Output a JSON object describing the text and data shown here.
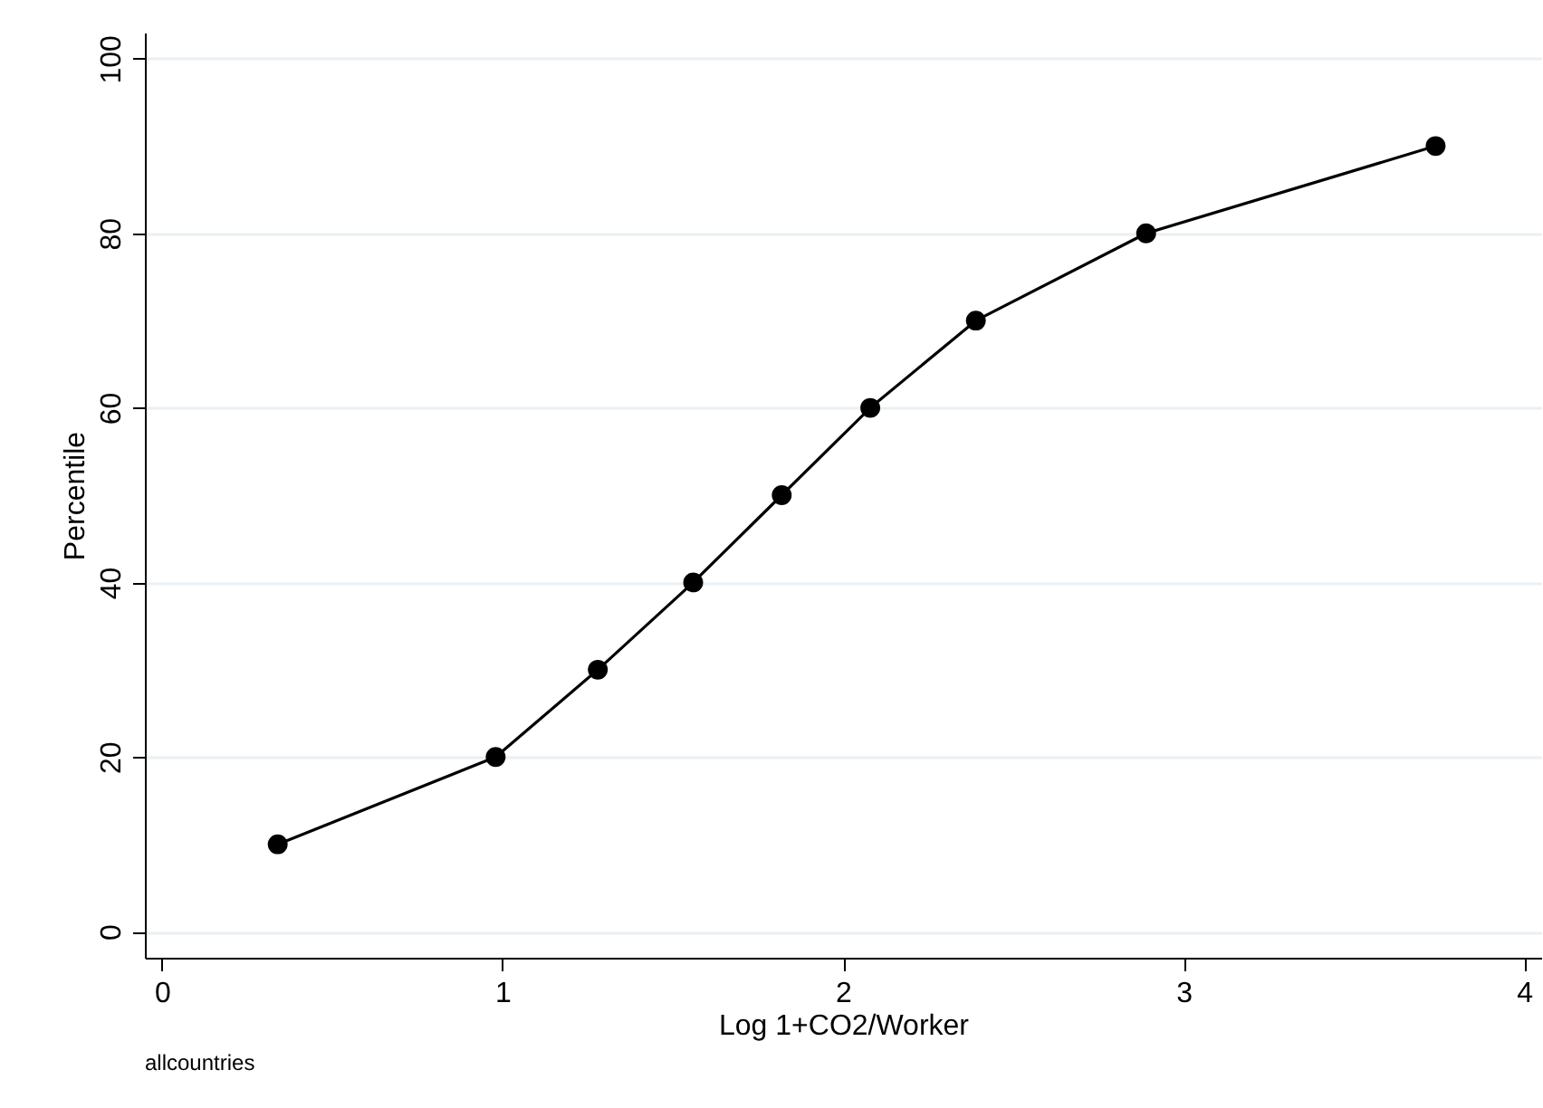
{
  "chart_data": {
    "type": "line",
    "xlabel": "Log 1+CO2/Worker",
    "ylabel": "Percentile",
    "annotations": [
      "allcountries"
    ],
    "x": [
      0.34,
      0.98,
      1.28,
      1.56,
      1.82,
      2.08,
      2.39,
      2.89,
      3.74
    ],
    "series": [
      {
        "color": "#000000",
        "values": [
          10,
          20,
          30,
          40,
          50,
          60,
          70,
          80,
          90
        ]
      }
    ],
    "xlim": [
      -0.05,
      4.05
    ],
    "xticks": [
      0,
      1,
      2,
      3,
      4
    ],
    "ylim": [
      -3,
      103
    ],
    "yticks": [
      0,
      20,
      40,
      60,
      80,
      100
    ],
    "grid": "y",
    "marker": "circle",
    "line_style": "solid"
  }
}
